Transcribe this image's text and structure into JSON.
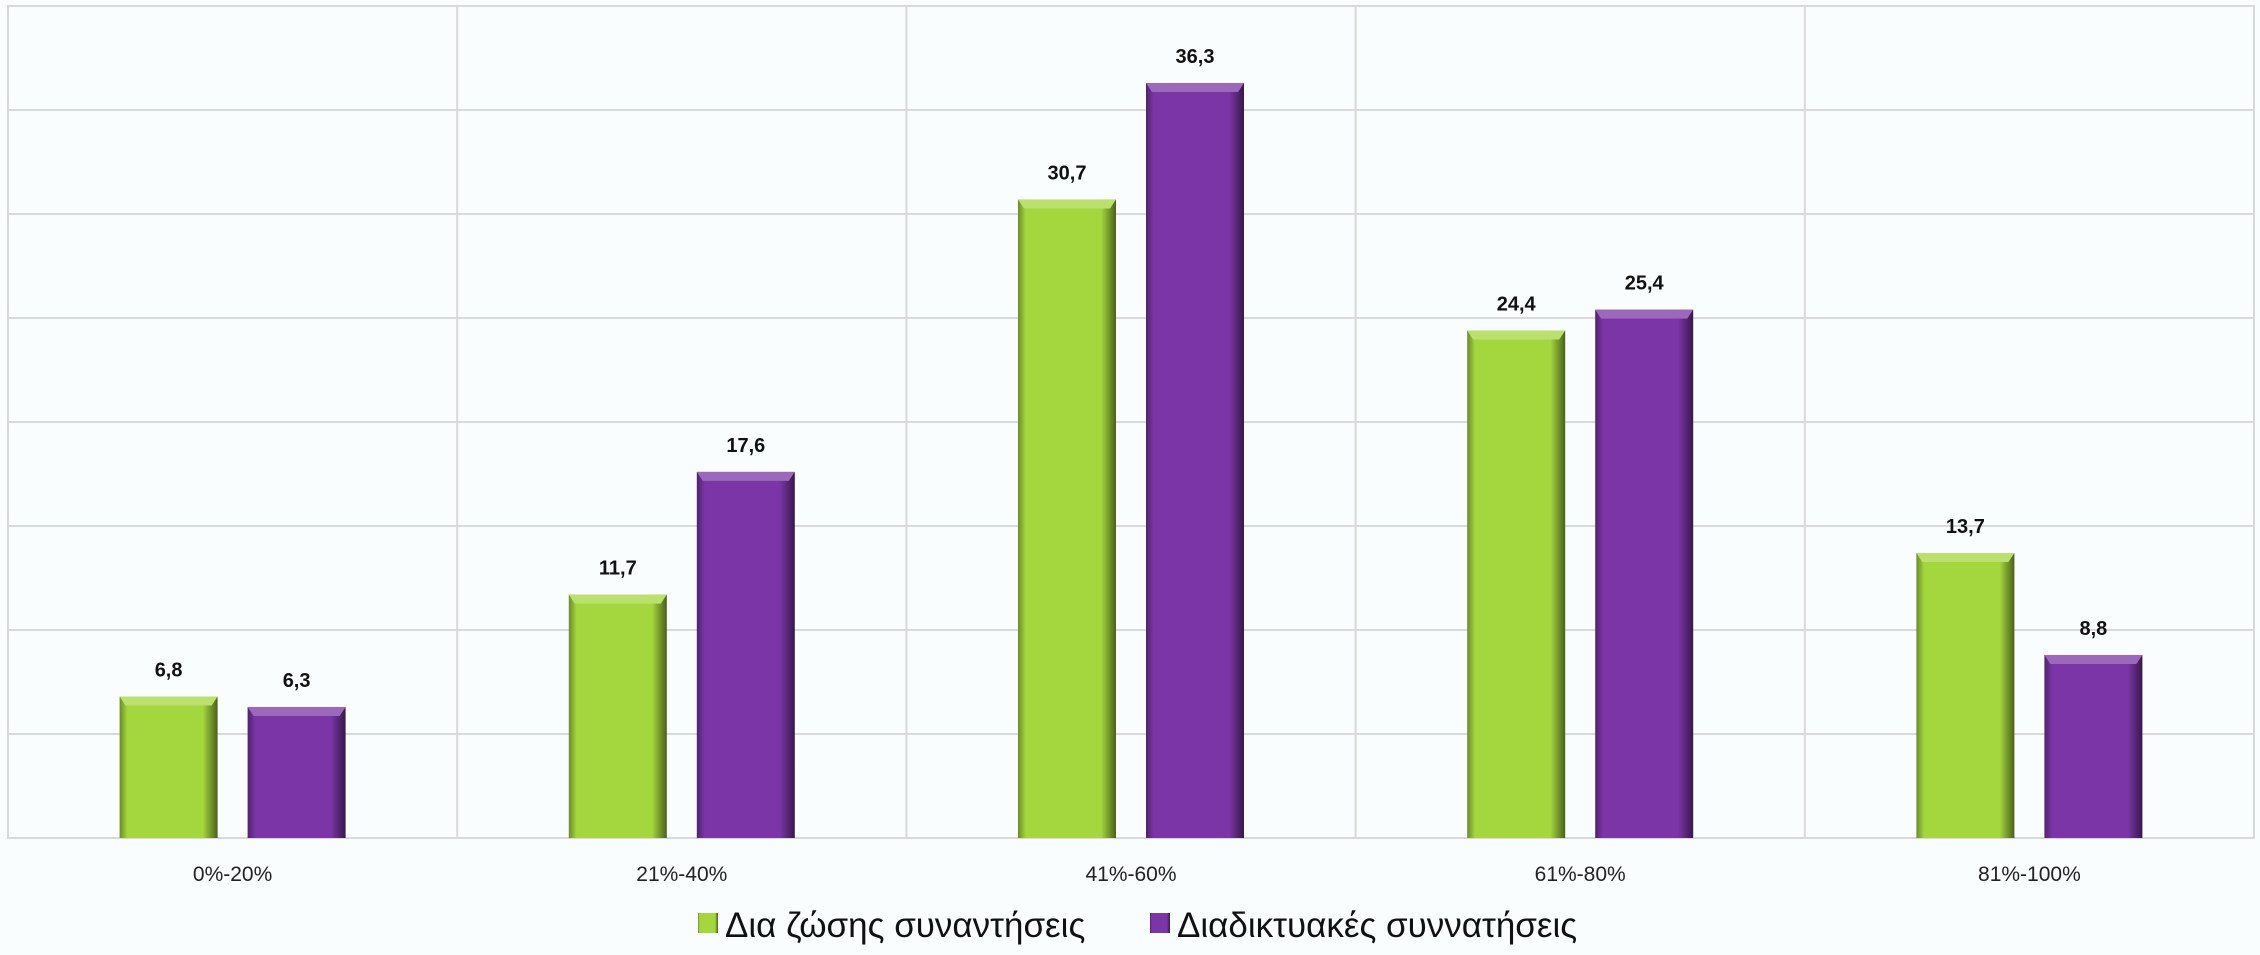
{
  "chart_data": {
    "type": "bar",
    "categories": [
      "0%-20%",
      "21%-40%",
      "41%-60%",
      "61%-80%",
      "81%-100%"
    ],
    "series": [
      {
        "name": "Δια ζώσης συναντήσεις",
        "values": [
          6.8,
          11.7,
          30.7,
          24.4,
          13.7
        ],
        "labels": [
          "6,8",
          "11,7",
          "30,7",
          "24,4",
          "13,7"
        ],
        "color": "#a4d63e"
      },
      {
        "name": "Διαδικτυακές συννατήσεις",
        "values": [
          6.3,
          17.6,
          36.3,
          25.4,
          8.8
        ],
        "labels": [
          "6,3",
          "17,6",
          "36,3",
          "25,4",
          "8,8"
        ],
        "color": "#7b35a6"
      }
    ],
    "ylim": [
      0,
      40
    ],
    "y_grid_step": 5,
    "grid": true,
    "axis_tick_labels_y": false,
    "legend_position": "bottom-center",
    "gridline_color": "#d9d9d9"
  }
}
